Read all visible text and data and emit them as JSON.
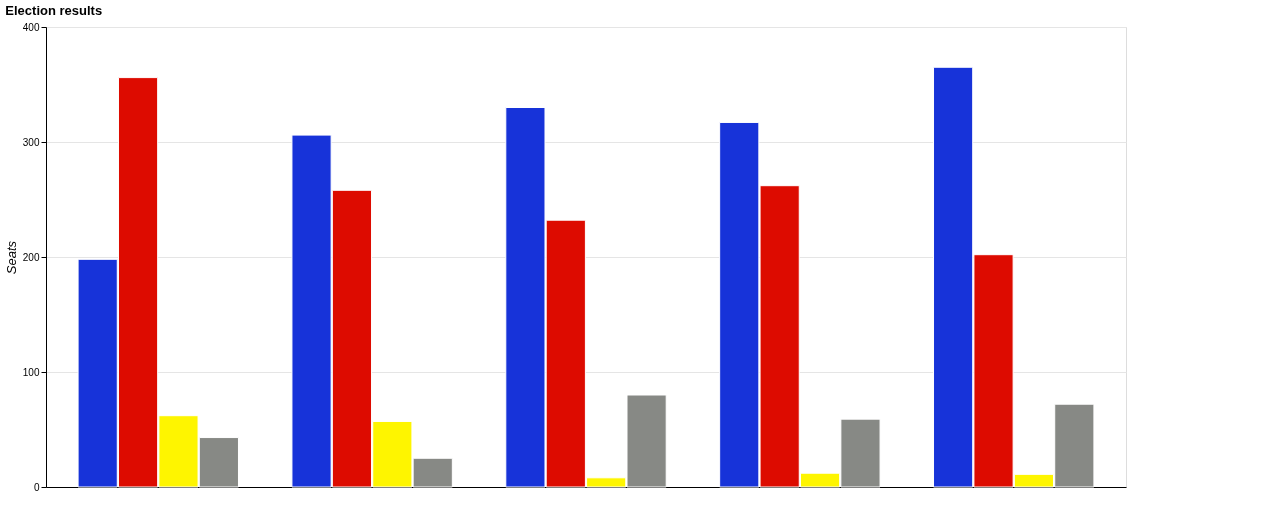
{
  "chart_data": {
    "type": "bar",
    "title": "Election results",
    "ylabel": "Seats",
    "categories": [
      null,
      null,
      null,
      null,
      null
    ],
    "series": [
      {
        "color": "#1733d9",
        "values": [
          198,
          306,
          330,
          317,
          365
        ]
      },
      {
        "color": "#dd0b00",
        "values": [
          356,
          258,
          232,
          262,
          202
        ]
      },
      {
        "color": "#fef500",
        "values": [
          62,
          57,
          8,
          12,
          11
        ]
      },
      {
        "color": "#878985",
        "values": [
          43,
          25,
          80,
          59,
          72
        ]
      }
    ],
    "ylim": [
      0,
      400
    ],
    "yticks": [
      0,
      100,
      200,
      300,
      400
    ],
    "grid": "y",
    "legend": false,
    "tick_labels": "y"
  }
}
